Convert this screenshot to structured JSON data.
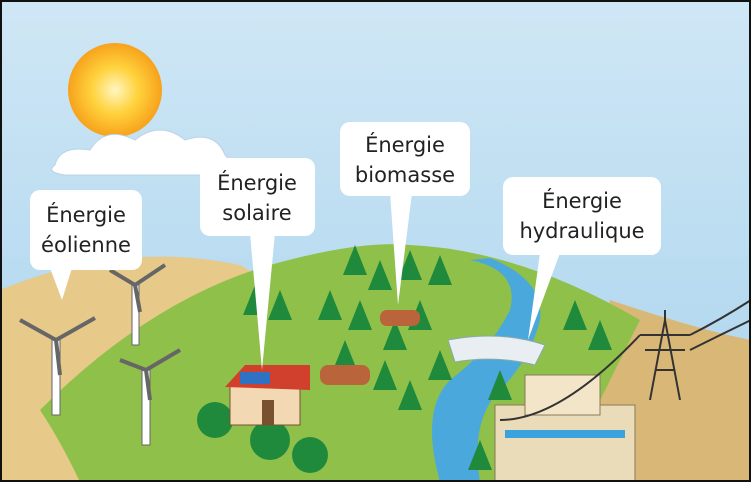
{
  "nodes": [
    {
      "lines": [
        "Énergie",
        "éolienne"
      ]
    },
    {
      "lines": [
        "Énergie",
        "solaire"
      ]
    },
    {
      "lines": [
        "Énergie",
        "biomasse"
      ]
    },
    {
      "lines": [
        "Énergie",
        "hydraulique"
      ]
    }
  ]
}
